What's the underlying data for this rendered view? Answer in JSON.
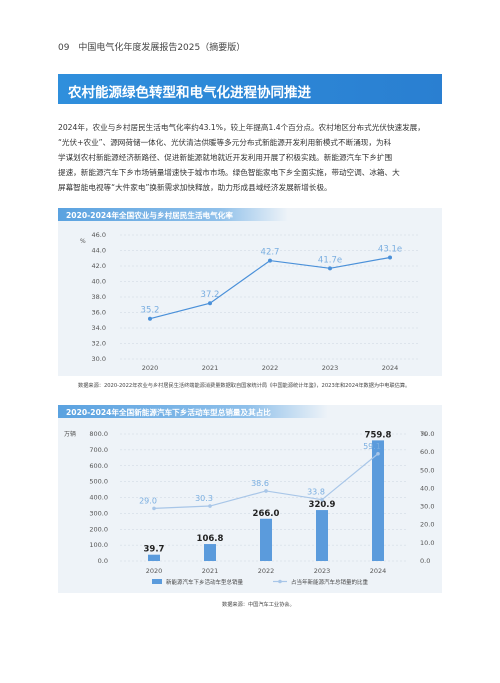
{
  "header": {
    "page_number": "09",
    "title": "中国电气化年度发展报告2025（摘要版）"
  },
  "section": {
    "title": "农村能源绿色转型和电气化进程协同推进"
  },
  "paragraph": {
    "lines": [
      "2024年，农业与乡村居民生活电气化率约43.1%，较上年提高1.4个百分点。农村地区分布式光伏快速发展，",
      "“光伏+农业”、源网荷储一体化、光伏清洁供暖等多元分布式新能源开发利用新模式不断涌现，为科",
      "学谋划农村新能源经济新路径、促进新能源就地就近开发利用开展了积极实践。新能源汽车下乡扩围",
      "提速，新能源汽车下乡市场销量增速快于城市市场。绿色智能家电下乡全面实施，带动空调、冰箱、大",
      "屏幕智能电视等“大件家电”换新需求加快释放，助力形成县域经济发展新增长极。"
    ]
  },
  "chart1": {
    "title_bar": "2020-2024年全国农业与乡村居民生活电气化率",
    "source": "数据来源：2020-2022年农业与乡村居民生活终端能源消费量数据取自国家统计局《中国能源统计年鉴》，2023年和2024年数据为中电联估算。"
  },
  "chart2": {
    "title_bar": "2020-2024年全国新能源汽车下乡活动车型总销量及其占比",
    "source": "数据来源：中国汽车工业协会。"
  },
  "chart_data": [
    {
      "type": "line",
      "title": "2020-2024年全国农业与乡村居民生活电气化率",
      "ylabel": "%",
      "x": [
        "2020",
        "2021",
        "2022",
        "2023",
        "2024"
      ],
      "ylim": [
        30.0,
        46.0
      ],
      "yticks": [
        "46.0",
        "44.0",
        "42.0",
        "40.0",
        "38.0",
        "36.0",
        "34.0",
        "32.0",
        "30.0"
      ],
      "series": [
        {
          "values": [
            35.2,
            37.2,
            42.7,
            41.7,
            43.1
          ],
          "labels": [
            "35.2",
            "37.2",
            "42.7",
            "41.7e",
            "43.1e"
          ]
        }
      ],
      "grid": true,
      "color": "#4a90d9"
    },
    {
      "type": "bar",
      "title": "2020-2024年全国新能源汽车下乡活动车型总销量及其占比",
      "ylabel": "万辆",
      "y2label": "%",
      "categories": [
        "2020",
        "2021",
        "2022",
        "2023",
        "2024"
      ],
      "ylim": [
        0,
        800
      ],
      "yticks": [
        "800.0",
        "700.0",
        "600.0",
        "500.0",
        "400.0",
        "300.0",
        "200.0",
        "100.0",
        "0.0"
      ],
      "y2lim": [
        0,
        70
      ],
      "y2ticks": [
        "70.0",
        "60.0",
        "50.0",
        "40.0",
        "30.0",
        "20.0",
        "10.0",
        "0.0"
      ],
      "series": [
        {
          "name": "新能源汽车下乡活动车型总销量",
          "axis": "left",
          "kind": "bar",
          "values": [
            39.7,
            106.8,
            266.0,
            320.9,
            759.8
          ],
          "labels": [
            "39.7",
            "106.8",
            "266.0",
            "320.9",
            "759.8"
          ]
        },
        {
          "name": "占当年新能源汽车总销量的比重",
          "axis": "right",
          "kind": "line",
          "values": [
            29.0,
            30.3,
            38.6,
            33.8,
            59.1
          ],
          "labels": [
            "29.0",
            "30.3",
            "38.6",
            "33.8",
            "59.1"
          ]
        }
      ],
      "grid": true,
      "legend": "bottom",
      "bar_color": "#5b9bdc",
      "line_color": "#a8c6e8"
    }
  ]
}
